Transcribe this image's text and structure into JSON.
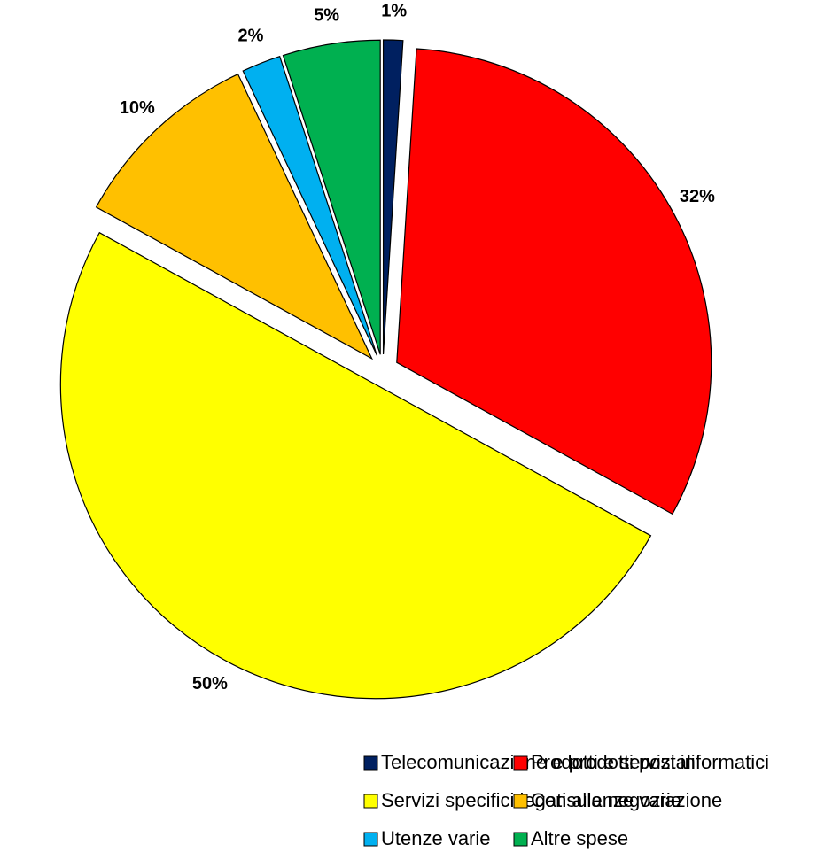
{
  "chart_data": {
    "type": "pie",
    "categories": [
      "Telecomunicazione e prodotti postali",
      "Prodotti e servizi informatici",
      "Servizi specifici legati alla negoziazione",
      "Consulenze varie",
      "Utenze varie",
      "Altre spese"
    ],
    "values": [
      1,
      32,
      50,
      10,
      2,
      5
    ],
    "value_labels": [
      "1%",
      "32%",
      "50%",
      "10%",
      "2%",
      "5%"
    ],
    "colors": [
      "#002060",
      "#ff0000",
      "#ffff00",
      "#ffc000",
      "#00b0f0",
      "#00b050"
    ],
    "legend": "bottom"
  }
}
